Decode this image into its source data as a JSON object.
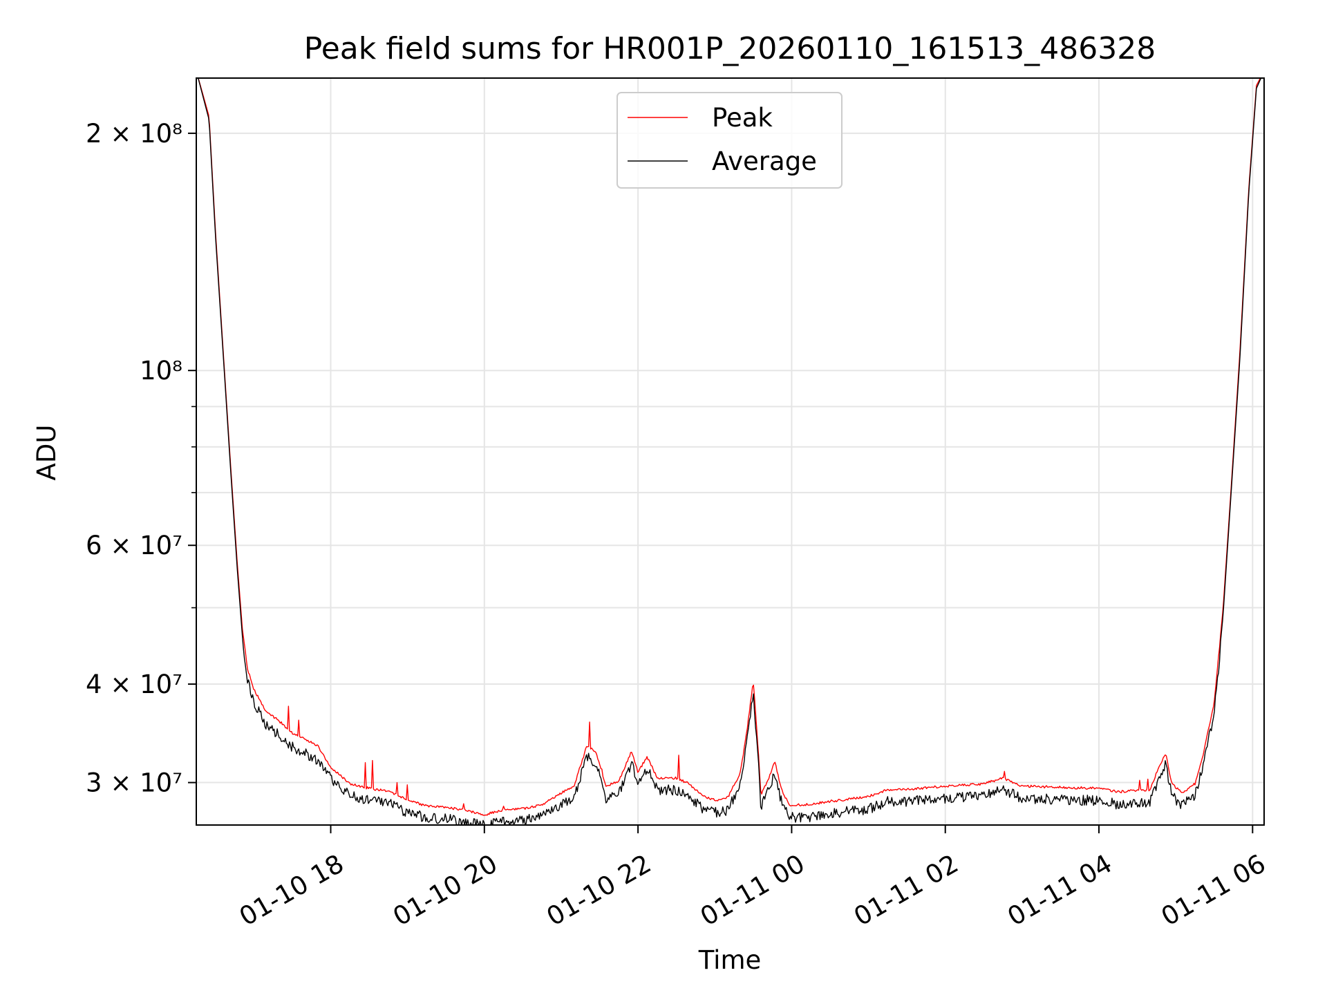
{
  "chart_data": {
    "type": "line",
    "title": "Peak field sums for HR001P_20260110_161513_486328",
    "xlabel": "Time",
    "ylabel": "ADU",
    "yscale": "log",
    "ylim": [
      26500000,
      235000000
    ],
    "xlim": [
      "2026-01-10 16:15",
      "2026-01-11 06:09"
    ],
    "grid": true,
    "legend": {
      "placement": "top-center",
      "entries": [
        "Peak",
        "Average"
      ]
    },
    "x_ticks": [
      {
        "value": "2026-01-10 18:00",
        "label": "01-10 18"
      },
      {
        "value": "2026-01-10 20:00",
        "label": "01-10 20"
      },
      {
        "value": "2026-01-10 22:00",
        "label": "01-10 22"
      },
      {
        "value": "2026-01-11 00:00",
        "label": "01-11 00"
      },
      {
        "value": "2026-01-11 02:00",
        "label": "01-11 02"
      },
      {
        "value": "2026-01-11 04:00",
        "label": "01-11 04"
      },
      {
        "value": "2026-01-11 06:00",
        "label": "01-11 06"
      }
    ],
    "y_ticks_major": [
      {
        "value": 30000000,
        "label": "3 × 10⁷"
      },
      {
        "value": 40000000,
        "label": "4 × 10⁷"
      },
      {
        "value": 60000000,
        "label": "6 × 10⁷"
      },
      {
        "value": 100000000,
        "label": "10⁸"
      },
      {
        "value": 200000000,
        "label": "2 × 10⁸"
      }
    ],
    "y_ticks_minor": [
      50000000,
      70000000,
      80000000,
      90000000
    ],
    "series": [
      {
        "name": "Peak",
        "color": "#ff0000",
        "noise": 0.012,
        "spikes": [
          [
            "2026-01-10 17:27",
            37500000
          ],
          [
            "2026-01-10 17:35",
            36000000
          ],
          [
            "2026-01-10 18:27",
            31800000
          ],
          [
            "2026-01-10 18:33",
            32000000
          ],
          [
            "2026-01-10 18:52",
            30000000
          ],
          [
            "2026-01-10 19:00",
            29800000
          ],
          [
            "2026-01-10 19:44",
            28200000
          ],
          [
            "2026-01-10 20:15",
            28000000
          ],
          [
            "2026-01-10 21:22",
            35800000
          ],
          [
            "2026-01-10 21:32",
            31200000
          ],
          [
            "2026-01-10 22:32",
            32500000
          ],
          [
            "2026-01-11 02:46",
            31000000
          ],
          [
            "2026-01-11 04:32",
            30200000
          ],
          [
            "2026-01-11 04:38",
            30300000
          ]
        ],
        "points": [
          [
            "2026-01-10 16:15",
            240000000
          ],
          [
            "2026-01-10 16:25",
            210000000
          ],
          [
            "2026-01-10 16:30",
            150000000
          ],
          [
            "2026-01-10 16:37",
            100000000
          ],
          [
            "2026-01-10 16:42",
            75000000
          ],
          [
            "2026-01-10 16:47",
            57000000
          ],
          [
            "2026-01-10 16:51",
            47000000
          ],
          [
            "2026-01-10 16:55",
            42000000
          ],
          [
            "2026-01-10 17:00",
            39500000
          ],
          [
            "2026-01-10 17:10",
            37000000
          ],
          [
            "2026-01-10 17:20",
            36000000
          ],
          [
            "2026-01-10 17:30",
            34800000
          ],
          [
            "2026-01-10 17:40",
            34200000
          ],
          [
            "2026-01-10 17:50",
            33500000
          ],
          [
            "2026-01-10 18:00",
            31500000
          ],
          [
            "2026-01-10 18:15",
            30000000
          ],
          [
            "2026-01-10 18:30",
            29600000
          ],
          [
            "2026-01-10 18:45",
            29400000
          ],
          [
            "2026-01-10 19:00",
            28600000
          ],
          [
            "2026-01-10 19:15",
            28100000
          ],
          [
            "2026-01-10 19:30",
            28000000
          ],
          [
            "2026-01-10 19:45",
            27800000
          ],
          [
            "2026-01-10 20:00",
            27400000
          ],
          [
            "2026-01-10 20:15",
            27800000
          ],
          [
            "2026-01-10 20:30",
            27900000
          ],
          [
            "2026-01-10 20:45",
            28200000
          ],
          [
            "2026-01-10 21:00",
            29200000
          ],
          [
            "2026-01-10 21:10",
            29800000
          ],
          [
            "2026-01-10 21:20",
            33500000
          ],
          [
            "2026-01-10 21:27",
            33000000
          ],
          [
            "2026-01-10 21:35",
            29800000
          ],
          [
            "2026-01-10 21:45",
            30200000
          ],
          [
            "2026-01-10 21:55",
            33000000
          ],
          [
            "2026-01-10 22:00",
            31000000
          ],
          [
            "2026-01-10 22:07",
            32500000
          ],
          [
            "2026-01-10 22:15",
            30500000
          ],
          [
            "2026-01-10 22:30",
            30500000
          ],
          [
            "2026-01-10 22:40",
            30000000
          ],
          [
            "2026-01-10 22:50",
            29000000
          ],
          [
            "2026-01-10 23:00",
            28600000
          ],
          [
            "2026-01-10 23:10",
            28800000
          ],
          [
            "2026-01-10 23:20",
            31000000
          ],
          [
            "2026-01-10 23:25",
            35000000
          ],
          [
            "2026-01-10 23:30",
            40500000
          ],
          [
            "2026-01-10 23:34",
            33000000
          ],
          [
            "2026-01-10 23:36",
            29000000
          ],
          [
            "2026-01-10 23:42",
            30500000
          ],
          [
            "2026-01-10 23:47",
            32000000
          ],
          [
            "2026-01-10 23:52",
            29500000
          ],
          [
            "2026-01-10 23:58",
            28200000
          ],
          [
            "2026-01-11 00:10",
            28200000
          ],
          [
            "2026-01-11 00:30",
            28500000
          ],
          [
            "2026-01-11 01:00",
            28900000
          ],
          [
            "2026-01-11 01:15",
            29500000
          ],
          [
            "2026-01-11 01:30",
            29500000
          ],
          [
            "2026-01-11 02:00",
            29800000
          ],
          [
            "2026-01-11 02:30",
            30000000
          ],
          [
            "2026-01-11 02:45",
            30500000
          ],
          [
            "2026-01-11 03:00",
            29800000
          ],
          [
            "2026-01-11 03:30",
            29700000
          ],
          [
            "2026-01-11 04:00",
            29600000
          ],
          [
            "2026-01-11 04:15",
            29300000
          ],
          [
            "2026-01-11 04:40",
            29500000
          ],
          [
            "2026-01-11 04:45",
            31000000
          ],
          [
            "2026-01-11 04:52",
            32800000
          ],
          [
            "2026-01-11 04:57",
            30000000
          ],
          [
            "2026-01-11 05:05",
            29200000
          ],
          [
            "2026-01-11 05:15",
            30000000
          ],
          [
            "2026-01-11 05:22",
            33000000
          ],
          [
            "2026-01-11 05:30",
            38000000
          ],
          [
            "2026-01-11 05:37",
            50000000
          ],
          [
            "2026-01-11 05:43",
            70000000
          ],
          [
            "2026-01-11 05:50",
            105000000
          ],
          [
            "2026-01-11 05:57",
            170000000
          ],
          [
            "2026-01-11 06:03",
            230000000
          ],
          [
            "2026-01-11 06:09",
            240000000
          ]
        ]
      },
      {
        "name": "Average",
        "color": "#000000",
        "noise": 0.03,
        "dips": [
          [
            "2026-01-10 20:00",
            26700000
          ],
          [
            "2026-01-10 20:09",
            26800000
          ],
          [
            "2026-01-10 19:07",
            27100000
          ],
          [
            "2026-01-10 23:59",
            27200000
          ]
        ],
        "points": [
          [
            "2026-01-10 16:15",
            240000000
          ],
          [
            "2026-01-10 16:25",
            208000000
          ],
          [
            "2026-01-10 16:30",
            148000000
          ],
          [
            "2026-01-10 16:37",
            99000000
          ],
          [
            "2026-01-10 16:42",
            74000000
          ],
          [
            "2026-01-10 16:47",
            56000000
          ],
          [
            "2026-01-10 16:51",
            46000000
          ],
          [
            "2026-01-10 16:55",
            41000000
          ],
          [
            "2026-01-10 17:00",
            38500000
          ],
          [
            "2026-01-10 17:10",
            36000000
          ],
          [
            "2026-01-10 17:20",
            35000000
          ],
          [
            "2026-01-10 17:30",
            33800000
          ],
          [
            "2026-01-10 17:40",
            33200000
          ],
          [
            "2026-01-10 17:50",
            32500000
          ],
          [
            "2026-01-10 18:00",
            30800000
          ],
          [
            "2026-01-10 18:15",
            29300000
          ],
          [
            "2026-01-10 18:30",
            28900000
          ],
          [
            "2026-01-10 18:45",
            28700000
          ],
          [
            "2026-01-10 19:00",
            27900000
          ],
          [
            "2026-01-10 19:15",
            27500000
          ],
          [
            "2026-01-10 19:30",
            27400000
          ],
          [
            "2026-01-10 19:45",
            27200000
          ],
          [
            "2026-01-10 20:00",
            26900000
          ],
          [
            "2026-01-10 20:15",
            27200000
          ],
          [
            "2026-01-10 20:30",
            27300000
          ],
          [
            "2026-01-10 20:45",
            27600000
          ],
          [
            "2026-01-10 21:00",
            28500000
          ],
          [
            "2026-01-10 21:10",
            29100000
          ],
          [
            "2026-01-10 21:20",
            32800000
          ],
          [
            "2026-01-10 21:27",
            32300000
          ],
          [
            "2026-01-10 21:35",
            29100000
          ],
          [
            "2026-01-10 21:45",
            29500000
          ],
          [
            "2026-01-10 21:55",
            32300000
          ],
          [
            "2026-01-10 22:00",
            30300000
          ],
          [
            "2026-01-10 22:07",
            31800000
          ],
          [
            "2026-01-10 22:15",
            29800000
          ],
          [
            "2026-01-10 22:30",
            29800000
          ],
          [
            "2026-01-10 22:40",
            29300000
          ],
          [
            "2026-01-10 22:50",
            28300000
          ],
          [
            "2026-01-10 23:00",
            27900000
          ],
          [
            "2026-01-10 23:10",
            28100000
          ],
          [
            "2026-01-10 23:20",
            30300000
          ],
          [
            "2026-01-10 23:25",
            34300000
          ],
          [
            "2026-01-10 23:30",
            39800000
          ],
          [
            "2026-01-10 23:34",
            32300000
          ],
          [
            "2026-01-10 23:36",
            28300000
          ],
          [
            "2026-01-10 23:42",
            29800000
          ],
          [
            "2026-01-10 23:47",
            31300000
          ],
          [
            "2026-01-10 23:52",
            28800000
          ],
          [
            "2026-01-10 23:58",
            27500000
          ],
          [
            "2026-01-11 00:10",
            27500000
          ],
          [
            "2026-01-11 00:30",
            27800000
          ],
          [
            "2026-01-11 01:00",
            28200000
          ],
          [
            "2026-01-11 01:15",
            28800000
          ],
          [
            "2026-01-11 01:30",
            28800000
          ],
          [
            "2026-01-11 02:00",
            29100000
          ],
          [
            "2026-01-11 02:30",
            29300000
          ],
          [
            "2026-01-11 02:45",
            29800000
          ],
          [
            "2026-01-11 03:00",
            29100000
          ],
          [
            "2026-01-11 03:30",
            29000000
          ],
          [
            "2026-01-11 04:00",
            28900000
          ],
          [
            "2026-01-11 04:15",
            28600000
          ],
          [
            "2026-01-11 04:40",
            28800000
          ],
          [
            "2026-01-11 04:45",
            30300000
          ],
          [
            "2026-01-11 04:52",
            32100000
          ],
          [
            "2026-01-11 04:57",
            29300000
          ],
          [
            "2026-01-11 05:05",
            28500000
          ],
          [
            "2026-01-11 05:15",
            29300000
          ],
          [
            "2026-01-11 05:22",
            32300000
          ],
          [
            "2026-01-11 05:30",
            37300000
          ],
          [
            "2026-01-11 05:37",
            49000000
          ],
          [
            "2026-01-11 05:43",
            69000000
          ],
          [
            "2026-01-11 05:50",
            103000000
          ],
          [
            "2026-01-11 05:57",
            168000000
          ],
          [
            "2026-01-11 06:03",
            228000000
          ],
          [
            "2026-01-11 06:09",
            240000000
          ]
        ]
      }
    ]
  }
}
